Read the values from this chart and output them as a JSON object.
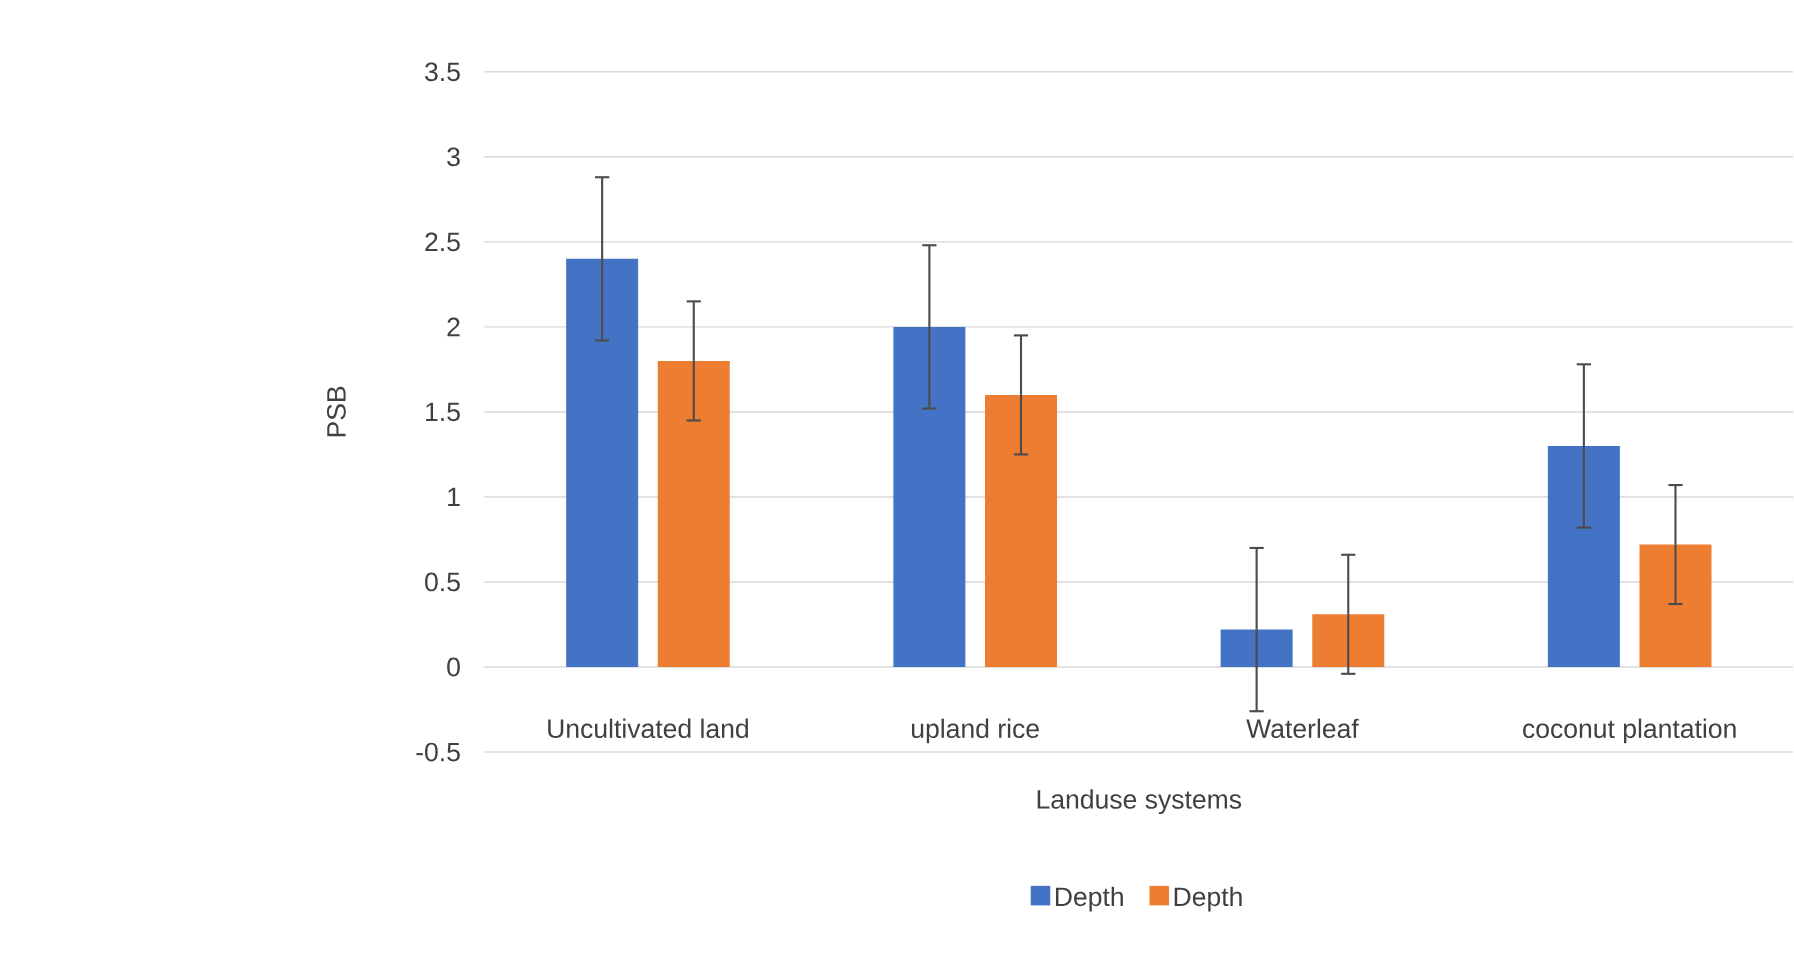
{
  "chart_data": {
    "type": "bar",
    "xlabel": "Landuse systems",
    "ylabel": "PSB",
    "categories": [
      "Uncultivated land",
      "upland rice",
      "Waterleaf",
      "coconut plantation"
    ],
    "series": [
      {
        "name": "Depth",
        "color": "#4472c4",
        "values": [
          2.4,
          2.0,
          0.22,
          1.3
        ],
        "errors": [
          0.48,
          0.48,
          0.48,
          0.48
        ]
      },
      {
        "name": "Depth",
        "color": "#ed7d31",
        "values": [
          1.8,
          1.6,
          0.31,
          0.72
        ],
        "errors": [
          0.35,
          0.35,
          0.35,
          0.35
        ]
      }
    ],
    "ylim": [
      -0.5,
      3.5
    ],
    "yticks": [
      -0.5,
      0,
      0.5,
      1,
      1.5,
      2,
      2.5,
      3,
      3.5
    ],
    "grid": "y",
    "legend": "bottom"
  }
}
